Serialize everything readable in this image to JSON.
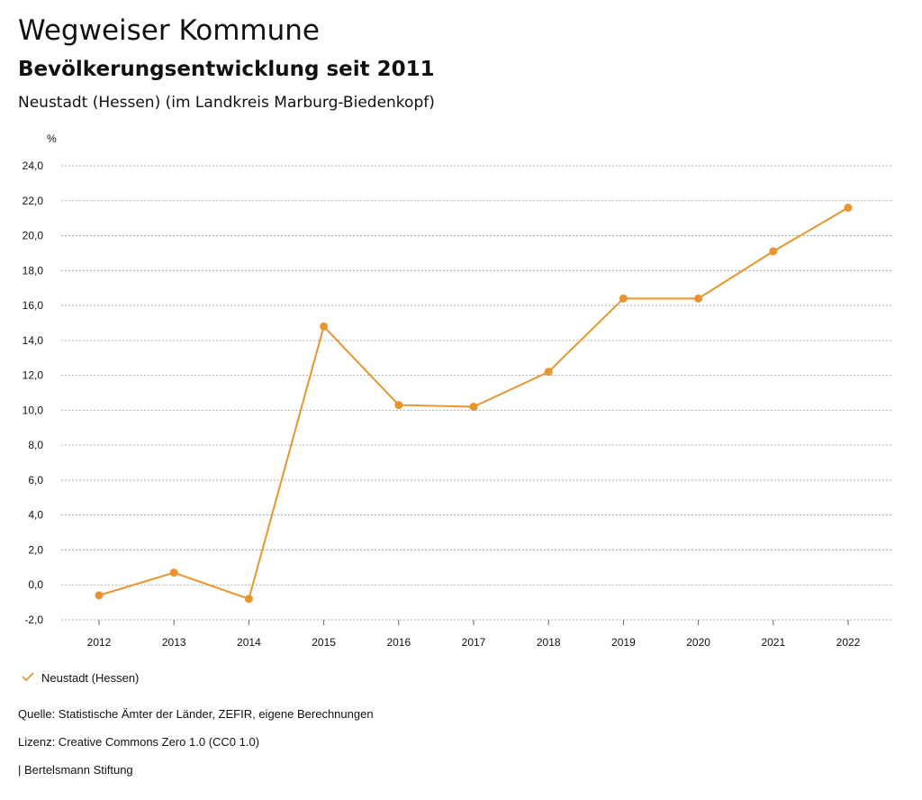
{
  "header": {
    "title": "Wegweiser Kommune",
    "subtitle": "Bevölkerungsentwicklung seit 2011",
    "region": "Neustadt (Hessen) (im Landkreis Marburg-Biedenkopf)"
  },
  "chart_data": {
    "type": "line",
    "ylabel": "%",
    "x": [
      "2012",
      "2013",
      "2014",
      "2015",
      "2016",
      "2017",
      "2018",
      "2019",
      "2020",
      "2021",
      "2022"
    ],
    "series": [
      {
        "name": "Neustadt (Hessen)",
        "color": "#E8952F",
        "values": [
          -0.6,
          0.7,
          -0.8,
          14.8,
          10.3,
          10.2,
          12.2,
          16.4,
          16.4,
          19.1,
          21.6
        ]
      }
    ],
    "ylim": [
      -2.0,
      24.0
    ],
    "yticks": [
      "-2,0",
      "0,0",
      "2,0",
      "4,0",
      "6,0",
      "8,0",
      "10,0",
      "12,0",
      "14,0",
      "16,0",
      "18,0",
      "20,0",
      "22,0",
      "24,0"
    ],
    "grid": true,
    "legend_position": "bottom-left"
  },
  "legend": {
    "icon": "check-icon",
    "label": "Neustadt (Hessen)"
  },
  "footer": {
    "source": "Quelle: Statistische Ämter der Länder, ZEFIR, eigene Berechnungen",
    "license": "Lizenz: Creative Commons Zero 1.0 (CC0 1.0)",
    "publisher": "| Bertelsmann Stiftung"
  }
}
